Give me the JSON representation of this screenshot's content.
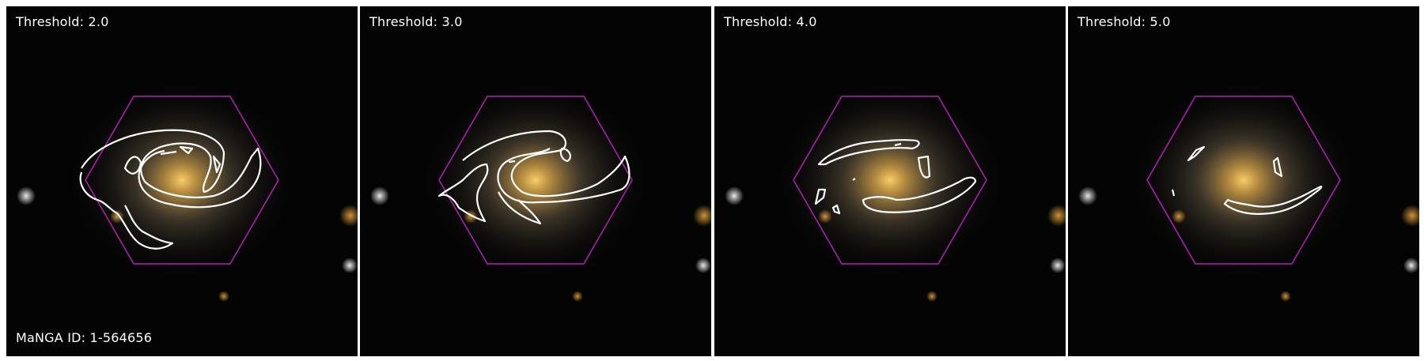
{
  "panels": [
    {
      "threshold_label": "Threshold: 2.0"
    },
    {
      "threshold_label": "Threshold: 3.0"
    },
    {
      "threshold_label": "Threshold: 4.0"
    },
    {
      "threshold_label": "Threshold: 5.0"
    }
  ],
  "manga_id_label": "MaNGA ID: 1-564656",
  "colors": {
    "background": "#040404",
    "hexagon": "#b41eb9",
    "contour": "#ffffff",
    "galaxy_core": "#f2c65a"
  }
}
